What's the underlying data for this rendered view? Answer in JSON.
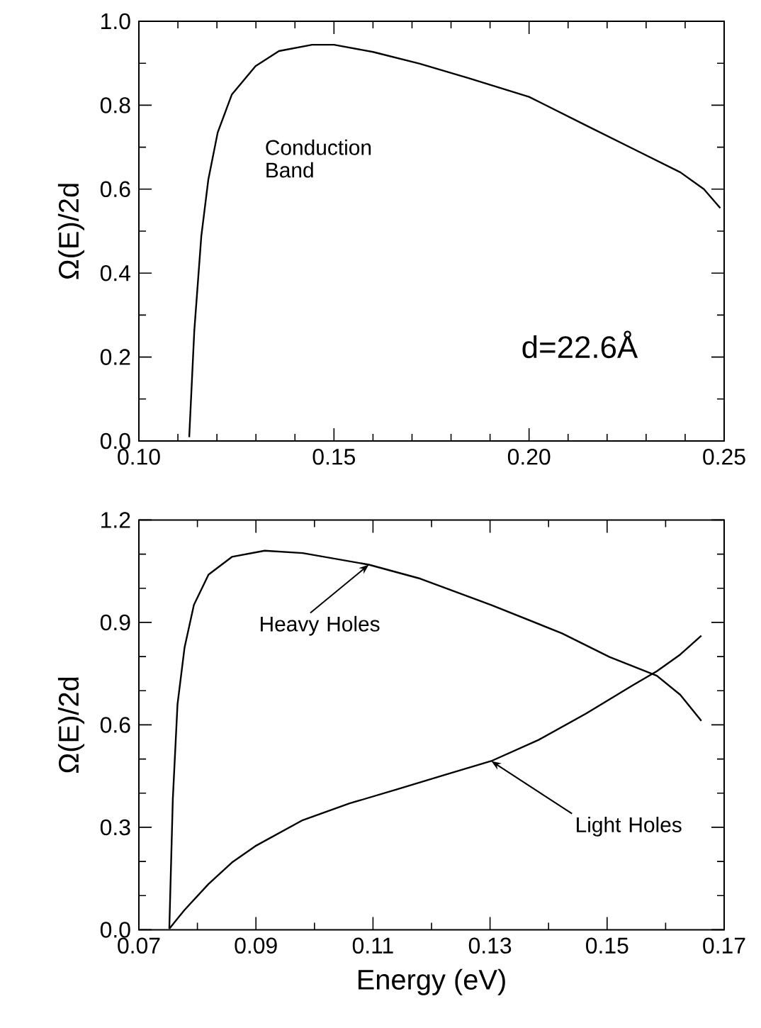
{
  "chart_data": [
    {
      "type": "line",
      "ylabel": "Ω(E)/2d",
      "annotations": [
        "d=22.6Å"
      ],
      "xlim": [
        0.1,
        0.25
      ],
      "ylim": [
        0,
        1.0
      ],
      "xticks": [
        {
          "value": 0.1,
          "label": "0.10"
        },
        {
          "value": 0.15,
          "label": "0.15"
        },
        {
          "value": 0.2,
          "label": "0.20"
        },
        {
          "value": 0.25,
          "label": "0.25"
        }
      ],
      "yticks": [
        {
          "value": 0,
          "label": "0.0"
        },
        {
          "value": 0.2,
          "label": "0.2"
        },
        {
          "value": 0.4,
          "label": "0.4"
        },
        {
          "value": 0.6,
          "label": "0.6"
        },
        {
          "value": 0.8,
          "label": "0.8"
        },
        {
          "value": 1.0,
          "label": "1.0"
        }
      ],
      "series": [
        {
          "name": "Conduction Band",
          "color": "#000000",
          "x": [
            0.1129,
            0.1142,
            0.116,
            0.1178,
            0.1202,
            0.1238,
            0.1299,
            0.1359,
            0.1444,
            0.15,
            0.16,
            0.172,
            0.1843,
            0.2,
            0.2146,
            0.2267,
            0.2388,
            0.2448,
            0.249
          ],
          "values": [
            0.009,
            0.262,
            0.488,
            0.623,
            0.735,
            0.825,
            0.893,
            0.929,
            0.944,
            0.944,
            0.927,
            0.899,
            0.865,
            0.82,
            0.752,
            0.696,
            0.64,
            0.6,
            0.555
          ]
        }
      ]
    },
    {
      "type": "line",
      "xlabel": "Energy (eV)",
      "ylabel": "Ω(E)/2d",
      "xlim": [
        0.07,
        0.17
      ],
      "ylim": [
        0,
        1.2
      ],
      "xticks": [
        {
          "value": 0.07,
          "label": "0.07"
        },
        {
          "value": 0.09,
          "label": "0.09"
        },
        {
          "value": 0.11,
          "label": "0.11"
        },
        {
          "value": 0.13,
          "label": "0.13"
        },
        {
          "value": 0.15,
          "label": "0.15"
        },
        {
          "value": 0.17,
          "label": "0.17"
        }
      ],
      "yticks": [
        {
          "value": 0,
          "label": "0.0"
        },
        {
          "value": 0.3,
          "label": "0.3"
        },
        {
          "value": 0.6,
          "label": "0.6"
        },
        {
          "value": 0.9,
          "label": "0.9"
        },
        {
          "value": 1.2,
          "label": "1.2"
        }
      ],
      "series": [
        {
          "name": "Heavy Holes",
          "color": "#000000",
          "x": [
            0.0752,
            0.0758,
            0.0766,
            0.0778,
            0.0794,
            0.0819,
            0.0859,
            0.0915,
            0.098,
            0.1093,
            0.1181,
            0.1302,
            0.1423,
            0.1504,
            0.1585,
            0.1625,
            0.1661
          ],
          "values": [
            0.003,
            0.383,
            0.66,
            0.826,
            0.951,
            1.04,
            1.092,
            1.11,
            1.103,
            1.069,
            1.028,
            0.951,
            0.868,
            0.799,
            0.744,
            0.688,
            0.612
          ]
        },
        {
          "name": "Light Holes",
          "color": "#000000",
          "x": [
            0.0752,
            0.0778,
            0.0819,
            0.0859,
            0.0899,
            0.098,
            0.106,
            0.1141,
            0.1222,
            0.1302,
            0.1383,
            0.1464,
            0.1544,
            0.1585,
            0.1625,
            0.1661
          ],
          "values": [
            0.003,
            0.058,
            0.134,
            0.197,
            0.245,
            0.321,
            0.37,
            0.411,
            0.453,
            0.494,
            0.556,
            0.633,
            0.716,
            0.757,
            0.806,
            0.861
          ]
        }
      ]
    }
  ]
}
